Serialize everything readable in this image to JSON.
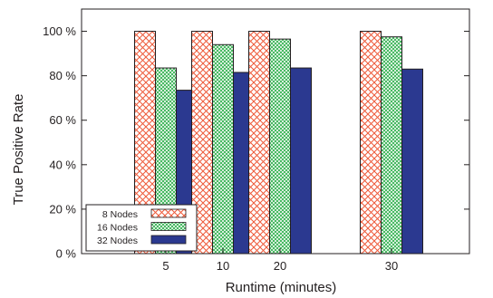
{
  "chart_data": {
    "type": "bar",
    "xlabel": "Runtime (minutes)",
    "ylabel": "True Positive Rate",
    "categories": [
      "5",
      "10",
      "20",
      "30"
    ],
    "ylim": [
      0,
      1.1
    ],
    "yticks": [
      0,
      0.2,
      0.4,
      0.6,
      0.8,
      1.0
    ],
    "ytick_labels": [
      "0 %",
      "20 %",
      "40 %",
      "60 %",
      "80 %",
      "100 %"
    ],
    "legend_position": "bottom-left",
    "grid": false,
    "series": [
      {
        "name": "8 Nodes",
        "values": [
          1.0,
          1.0,
          1.0,
          1.0
        ],
        "color": "#ee5a3a",
        "pattern": "crosshatch"
      },
      {
        "name": "16 Nodes",
        "values": [
          0.835,
          0.94,
          0.965,
          0.975
        ],
        "color": "#2cae4a",
        "pattern": "fine-crosshatch"
      },
      {
        "name": "32 Nodes",
        "values": [
          0.735,
          0.815,
          0.835,
          0.83
        ],
        "color": "#2b3990",
        "pattern": "solid"
      }
    ]
  }
}
